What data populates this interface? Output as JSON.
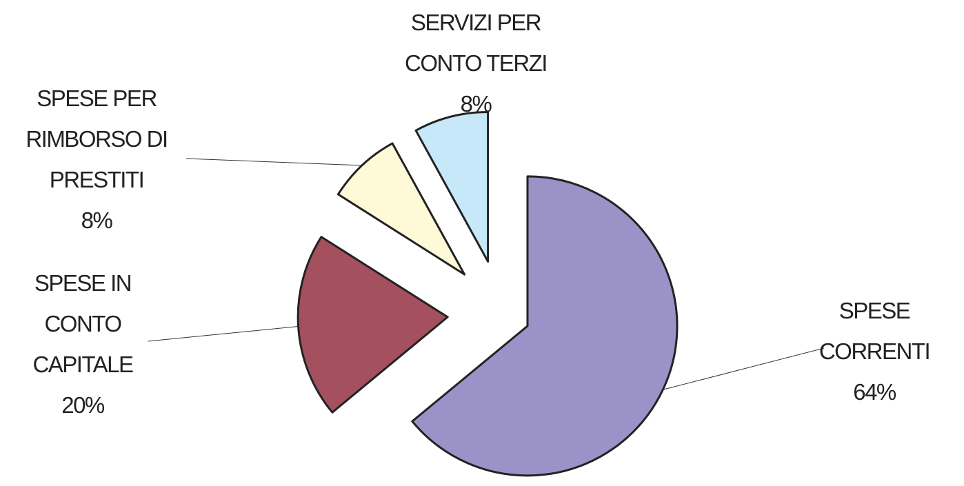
{
  "chart_data": {
    "type": "pie",
    "categories": [
      "SPESE CORRENTI",
      "SPESE IN CONTO CAPITALE",
      "SPESE PER RIMBORSO DI PRESTITI",
      "SERVIZI PER CONTO TERZI"
    ],
    "values": [
      64,
      20,
      8,
      8
    ],
    "value_labels": [
      "64%",
      "20%",
      "8%",
      "8%"
    ],
    "colors": [
      "#9b93c8",
      "#a5505e",
      "#fefad8",
      "#c7e8f8"
    ]
  }
}
